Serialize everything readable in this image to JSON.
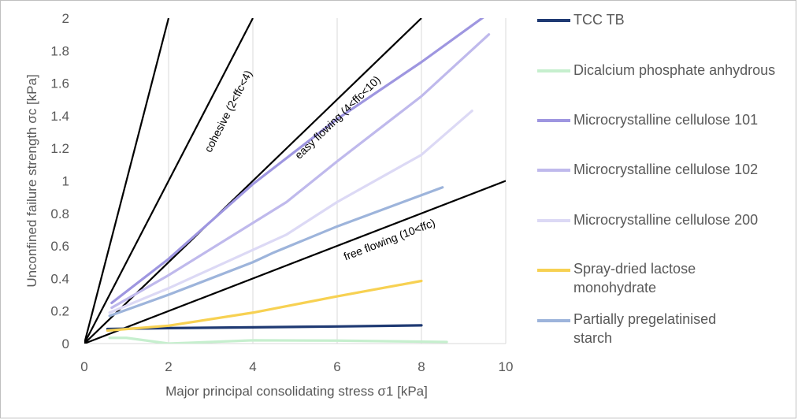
{
  "chart_data": {
    "type": "line",
    "xlabel": "Major principal consolidating stress σ1 [kPa]",
    "ylabel": "Unconfined failure strength σc [kPa]",
    "xlim": [
      0,
      10
    ],
    "ylim": [
      0,
      2
    ],
    "x_ticks": [
      "0",
      "2",
      "4",
      "6",
      "8",
      "10"
    ],
    "y_ticks": [
      "0",
      "0.2",
      "0.4",
      "0.6",
      "0.8",
      "1",
      "1.2",
      "1.4",
      "1.6",
      "1.8",
      "2"
    ],
    "grid": "vertical",
    "legend_position": "right",
    "reference_lines": [
      {
        "name": "ffc=1",
        "slope": 1
      },
      {
        "name": "ffc=2",
        "slope": 0.5
      },
      {
        "name": "ffc=4",
        "slope": 0.25
      },
      {
        "name": "ffc=10",
        "slope": 0.1
      }
    ],
    "region_labels": [
      {
        "text": "cohesive (2<ffc<4)",
        "x": 3.0,
        "y": 1.17
      },
      {
        "text": "easy flowing (4<ffc<10)",
        "x": 5.1,
        "y": 1.13
      },
      {
        "text": "free flowing (10<ffc)",
        "x": 6.2,
        "y": 0.51
      }
    ],
    "series": [
      {
        "name": "TCC TB",
        "color": "#1f3a73",
        "x": [
          0.55,
          2.0,
          4.0,
          6.0,
          8.0
        ],
        "y": [
          0.09,
          0.095,
          0.1,
          0.105,
          0.112
        ]
      },
      {
        "name": "Dicalcium phosphate anhydrous",
        "color": "#c6efce",
        "x": [
          0.6,
          1.0,
          2.0,
          4.0,
          6.0,
          8.6
        ],
        "y": [
          0.035,
          0.035,
          0.0,
          0.02,
          0.018,
          0.01
        ]
      },
      {
        "name": "Microcrystalline cellulose 101",
        "color": "#9e96e0",
        "x": [
          0.65,
          2.0,
          4.0,
          6.0,
          8.0,
          9.6
        ],
        "y": [
          0.25,
          0.52,
          0.98,
          1.38,
          1.73,
          2.03
        ]
      },
      {
        "name": "Microcrystalline cellulose 102",
        "color": "#bfb9ec",
        "x": [
          0.65,
          2.0,
          4.8,
          6.0,
          8.0,
          9.6
        ],
        "y": [
          0.22,
          0.42,
          0.87,
          1.12,
          1.52,
          1.9
        ]
      },
      {
        "name": "Microcrystalline cellulose 200",
        "color": "#dcd9f5",
        "x": [
          0.6,
          2.0,
          4.8,
          6.0,
          8.0,
          9.2
        ],
        "y": [
          0.19,
          0.34,
          0.67,
          0.87,
          1.16,
          1.43
        ]
      },
      {
        "name": "Spray-dried lactose monohydrate",
        "color": "#f7d152",
        "x": [
          0.55,
          2.0,
          4.0,
          6.0,
          8.0
        ],
        "y": [
          0.08,
          0.11,
          0.19,
          0.29,
          0.385
        ]
      },
      {
        "name": "Partially pregelatinised starch",
        "color": "#9db4db",
        "x": [
          0.6,
          2.0,
          4.0,
          4.5,
          6.0,
          8.5
        ],
        "y": [
          0.17,
          0.3,
          0.5,
          0.56,
          0.72,
          0.96
        ]
      }
    ]
  },
  "legend": {
    "items": [
      {
        "label": "TCC TB",
        "color": "#1f3a73"
      },
      {
        "label": "Dicalcium phosphate anhydrous",
        "color": "#c6efce"
      },
      {
        "label": "Microcrystalline cellulose 101",
        "color": "#9e96e0"
      },
      {
        "label": "Microcrystalline cellulose 102",
        "color": "#bfb9ec"
      },
      {
        "label": "Microcrystalline cellulose 200",
        "color": "#dcd9f5"
      },
      {
        "label": "Spray-dried lactose monohydrate",
        "color": "#f7d152"
      },
      {
        "label": "Partially pregelatinised starch",
        "color": "#9db4db"
      }
    ]
  }
}
